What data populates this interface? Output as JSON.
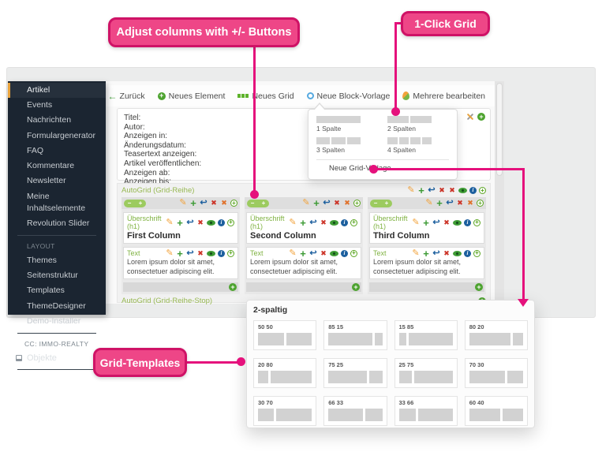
{
  "callouts": {
    "adjust": "Adjust columns with +/- Buttons",
    "one_click": "1-Click Grid",
    "templates": "Grid-Templates"
  },
  "sidebar": {
    "main_items": [
      "Artikel",
      "Events",
      "Nachrichten",
      "Formulargenerator",
      "FAQ",
      "Kommentare",
      "Newsletter",
      "Meine Inhaltselemente",
      "Revolution Slider"
    ],
    "active_item": "Artikel",
    "layout_header": "LAYOUT",
    "layout_items": [
      "Themes",
      "Seitenstruktur",
      "Templates",
      "ThemeDesigner",
      "Demo-Installer"
    ],
    "cc_header": "CC: IMMO-REALTY",
    "objekte_label": "Objekte"
  },
  "toolbar": {
    "items": [
      {
        "label": "Zurück",
        "icon": "arrow-left"
      },
      {
        "label": "Neues Element",
        "icon": "circle-filled"
      },
      {
        "label": "Neues Grid",
        "icon": "grid-bars"
      },
      {
        "label": "Neue Block-Vorlage",
        "icon": "ring-blue"
      },
      {
        "label": "Mehrere bearbeiten",
        "icon": "drop"
      }
    ]
  },
  "form": {
    "labels": [
      "Titel:",
      "Autor:",
      "Anzeigen in:",
      "Änderungsdatum:",
      "Teasertext anzeigen:",
      "Artikel veröffentlichen:",
      "Anzeigen ab:",
      "Anzeigen bis:"
    ]
  },
  "grid_dropdown": {
    "options": [
      {
        "label": "1 Spalte",
        "bars": 1
      },
      {
        "label": "2 Spalten",
        "bars": 2
      },
      {
        "label": "3 Spalten",
        "bars": 3
      },
      {
        "label": "4 Spalten",
        "bars": 4
      }
    ],
    "footer_label": "Neue Grid-Vorlage"
  },
  "autogrid": {
    "start_label": "AutoGrid (Grid-Reihe)",
    "stop_label": "AutoGrid (Grid-Reihe-Stop)",
    "heading_label": "Überschrift (h1)",
    "text_label": "Text",
    "lorem": "Lorem ipsum dolor sit amet, consectetuer adipiscing elit.",
    "pill_minus": "−",
    "pill_plus": "+",
    "columns": [
      {
        "title": "First Column"
      },
      {
        "title": "Second Column"
      },
      {
        "title": "Third Column"
      }
    ],
    "icon_sets": {
      "section_header": [
        "pencil",
        "plus",
        "arrow",
        "x-red",
        "x-red",
        "eye",
        "info",
        "circle-outline"
      ],
      "column_header": [
        "pencil",
        "plus",
        "arrow",
        "x-red",
        "x-orange",
        "circle-outline"
      ],
      "element_header": [
        "pencil",
        "plus",
        "arrow",
        "x-red",
        "eye",
        "info",
        "circle-outline"
      ]
    }
  },
  "templates_popup": {
    "title": "2-spaltig",
    "cards": [
      {
        "label": "50 50",
        "split": [
          50,
          50
        ]
      },
      {
        "label": "85 15",
        "split": [
          85,
          15
        ]
      },
      {
        "label": "15 85",
        "split": [
          15,
          85
        ]
      },
      {
        "label": "80 20",
        "split": [
          80,
          20
        ]
      },
      {
        "label": "20 80",
        "split": [
          20,
          80
        ]
      },
      {
        "label": "75 25",
        "split": [
          75,
          25
        ]
      },
      {
        "label": "25 75",
        "split": [
          25,
          75
        ]
      },
      {
        "label": "70 30",
        "split": [
          70,
          30
        ]
      },
      {
        "label": "30 70",
        "split": [
          30,
          70
        ]
      },
      {
        "label": "66 33",
        "split": [
          66,
          33
        ]
      },
      {
        "label": "33 66",
        "split": [
          33,
          66
        ]
      },
      {
        "label": "60 40",
        "split": [
          60,
          40
        ]
      }
    ]
  },
  "colors": {
    "accent_pink": "#ee4687",
    "pink_border": "#cf1266",
    "pink_line": "#e5117c",
    "green": "#3d9b35",
    "label_green": "#97b852",
    "sidebar_bg": "#1b2531",
    "sidebar_active_orange": "#e9a33c",
    "blue": "#1c5f9e"
  }
}
